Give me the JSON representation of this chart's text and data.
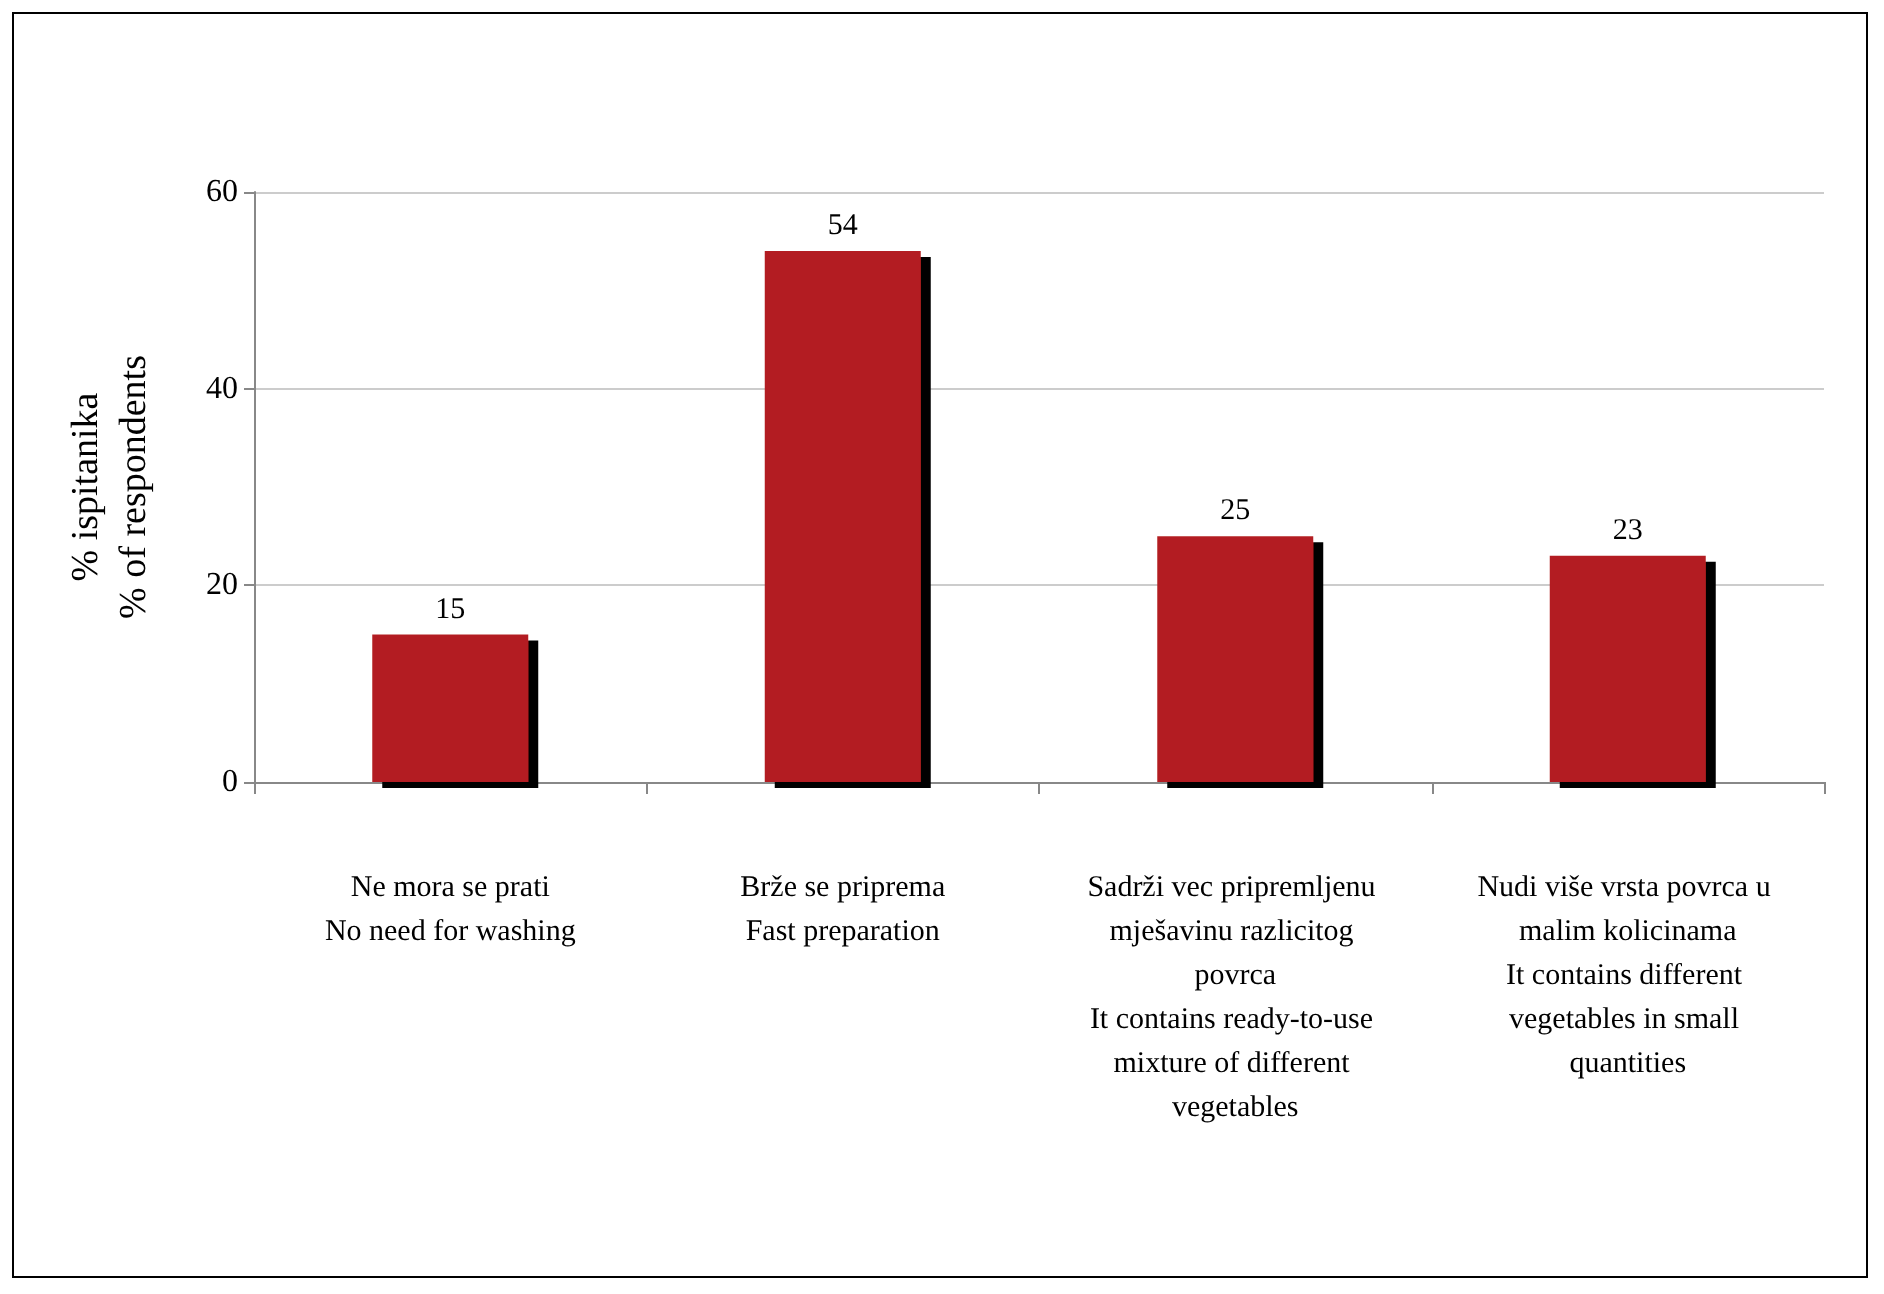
{
  "chart_data": {
    "type": "bar",
    "categories": [
      "Ne mora se prati\nNo need for washing",
      "Brže se priprema\nFast preparation",
      "Sadrži vec pripremljenu mješavinu razlicitog povrca\nIt contains ready-to-use mixture of different vegetables",
      "Nudi više vrsta povrca u malim kolicinama\nIt contains different vegetables in small quantities"
    ],
    "values": [
      15,
      54,
      25,
      23
    ],
    "color": "#b31f24",
    "ylabel": "% ispitanika\n% of respondents",
    "ylim": [
      0,
      60
    ],
    "yticks": [
      0,
      20,
      40,
      60
    ],
    "grid": "y",
    "data_labels": true
  }
}
